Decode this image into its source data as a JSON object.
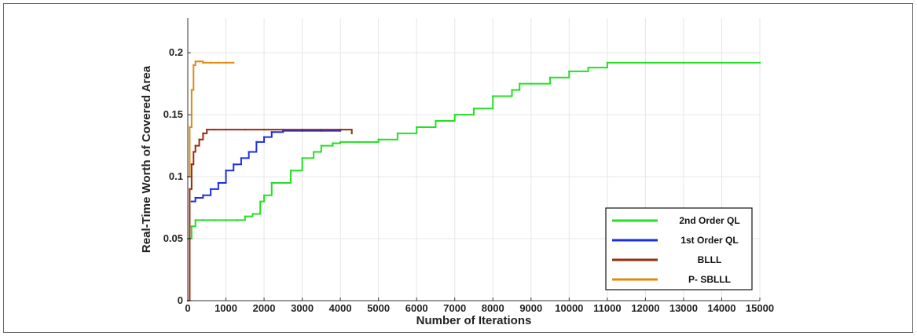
{
  "chart_data": {
    "type": "line",
    "title": "",
    "xlabel": "Number of Iterations",
    "ylabel": "Real-Time Worth of Covered Area",
    "xlim": [
      0,
      15000
    ],
    "ylim": [
      0,
      0.228
    ],
    "xticks": [
      0,
      1000,
      2000,
      3000,
      4000,
      5000,
      6000,
      7000,
      8000,
      9000,
      10000,
      11000,
      12000,
      13000,
      14000,
      15000
    ],
    "yticks": [
      0,
      0.05,
      0.1,
      0.15,
      0.2
    ],
    "ytick_labels": [
      "0",
      "0.05",
      "0.1",
      "0.15",
      "0.2"
    ],
    "grid": true,
    "legend_position": "bottom-right",
    "series": [
      {
        "name": "2nd Order QL",
        "color": "#22e022",
        "x": [
          0,
          100,
          200,
          400,
          700,
          1000,
          1300,
          1500,
          1700,
          1900,
          2000,
          2200,
          2500,
          2700,
          3000,
          3300,
          3500,
          3800,
          4000,
          4500,
          5000,
          5500,
          6000,
          6500,
          7000,
          7500,
          8000,
          8500,
          8700,
          9000,
          9500,
          10000,
          10500,
          11000,
          12000,
          13000,
          14000,
          15000
        ],
        "y": [
          0.05,
          0.06,
          0.065,
          0.065,
          0.065,
          0.065,
          0.065,
          0.068,
          0.07,
          0.08,
          0.085,
          0.095,
          0.095,
          0.105,
          0.115,
          0.12,
          0.125,
          0.127,
          0.128,
          0.128,
          0.13,
          0.135,
          0.14,
          0.145,
          0.15,
          0.155,
          0.165,
          0.17,
          0.175,
          0.175,
          0.18,
          0.185,
          0.188,
          0.192,
          0.192,
          0.192,
          0.192,
          0.192
        ]
      },
      {
        "name": "1st Order QL",
        "color": "#1a2ee8",
        "x": [
          100,
          200,
          400,
          600,
          800,
          1000,
          1200,
          1400,
          1600,
          1800,
          2000,
          2200,
          2500,
          3000,
          3500,
          4000
        ],
        "y": [
          0.08,
          0.083,
          0.085,
          0.09,
          0.095,
          0.105,
          0.11,
          0.115,
          0.12,
          0.128,
          0.132,
          0.136,
          0.137,
          0.137,
          0.137,
          0.137
        ]
      },
      {
        "name": "BLLL",
        "color": "#9c2a0e",
        "x": [
          0,
          50,
          100,
          150,
          200,
          300,
          400,
          500,
          700,
          1000,
          1500,
          2000,
          2500,
          3000,
          3500,
          4000,
          4300
        ],
        "y": [
          0,
          0.09,
          0.11,
          0.12,
          0.125,
          0.13,
          0.135,
          0.138,
          0.138,
          0.138,
          0.138,
          0.138,
          0.138,
          0.138,
          0.138,
          0.138,
          0.135
        ]
      },
      {
        "name": "P- SBLLL",
        "color": "#e08a12",
        "x": [
          0,
          50,
          100,
          150,
          200,
          300,
          400,
          600,
          800,
          1000,
          1200
        ],
        "y": [
          0.1,
          0.14,
          0.17,
          0.19,
          0.193,
          0.193,
          0.192,
          0.192,
          0.192,
          0.192,
          0.192
        ]
      }
    ]
  }
}
